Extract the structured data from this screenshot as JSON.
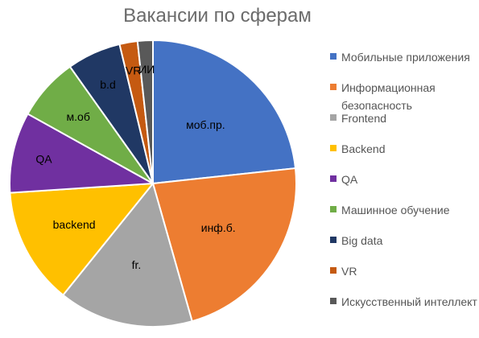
{
  "chart_data": {
    "type": "pie",
    "title": "Вакансии по сферам",
    "slices": [
      {
        "name": "Мобильные приложения",
        "label": "моб.пр.",
        "value": 23,
        "color": "#4472C4"
      },
      {
        "name": "Информационная безопасность",
        "label": "инф.б.",
        "value": 22,
        "color": "#ED7D31"
      },
      {
        "name": "Frontend",
        "label": "fr.",
        "value": 15,
        "color": "#A5A5A5"
      },
      {
        "name": "Backend",
        "label": "backend",
        "value": 13,
        "color": "#FFC000"
      },
      {
        "name": "QA",
        "label": "QA",
        "value": 9,
        "color": "#7030A0"
      },
      {
        "name": "Машинное обучение",
        "label": "м.об",
        "value": 7,
        "color": "#70AD47"
      },
      {
        "name": "Big data",
        "label": "b.d",
        "value": 6,
        "color": "#203864"
      },
      {
        "name": "VR",
        "label": "VR",
        "value": 2,
        "color": "#C55A11"
      },
      {
        "name": "Искусственный интеллект",
        "label": "ИИ",
        "value": 1.7,
        "color": "#595959"
      }
    ],
    "legend_position": "right"
  }
}
